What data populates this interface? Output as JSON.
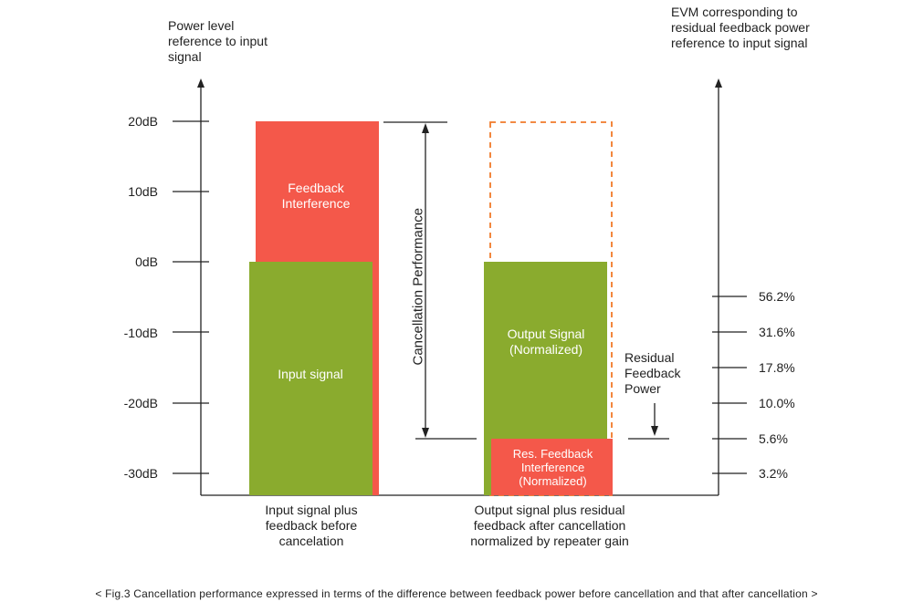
{
  "left_axis": {
    "title": "Power level reference to input signal",
    "ticks": [
      "20dB",
      "10dB",
      "0dB",
      "-10dB",
      "-20dB",
      "-30dB"
    ]
  },
  "right_axis": {
    "title": "EVM corresponding to residual feedback power reference to input signal",
    "ticks": [
      "56.2%",
      "31.6%",
      "17.8%",
      "10.0%",
      "5.6%",
      "3.2%"
    ]
  },
  "bars": {
    "feedback_interference": "Feedback Interference",
    "input_signal": "Input signal",
    "output_signal": "Output Signal (Normalized)",
    "res_feedback": "Res. Feedback Interference (Normalized)"
  },
  "annotations": {
    "cancellation_performance": "Cancellation Performance",
    "residual_feedback_power": "Residual Feedback Power"
  },
  "categories": {
    "left": "Input signal plus feedback before cancelation",
    "right": "Output signal plus residual feedback after cancellation normalized by repeater gain"
  },
  "caption": "< Fig.3 Cancellation performance expressed in terms of the difference between feedback power before cancellation and that after cancellation >",
  "colors": {
    "feedback_red": "#f4584a",
    "signal_green": "#8aab2e",
    "dashed_orange": "#f07a2a",
    "axis": "#222222"
  }
}
